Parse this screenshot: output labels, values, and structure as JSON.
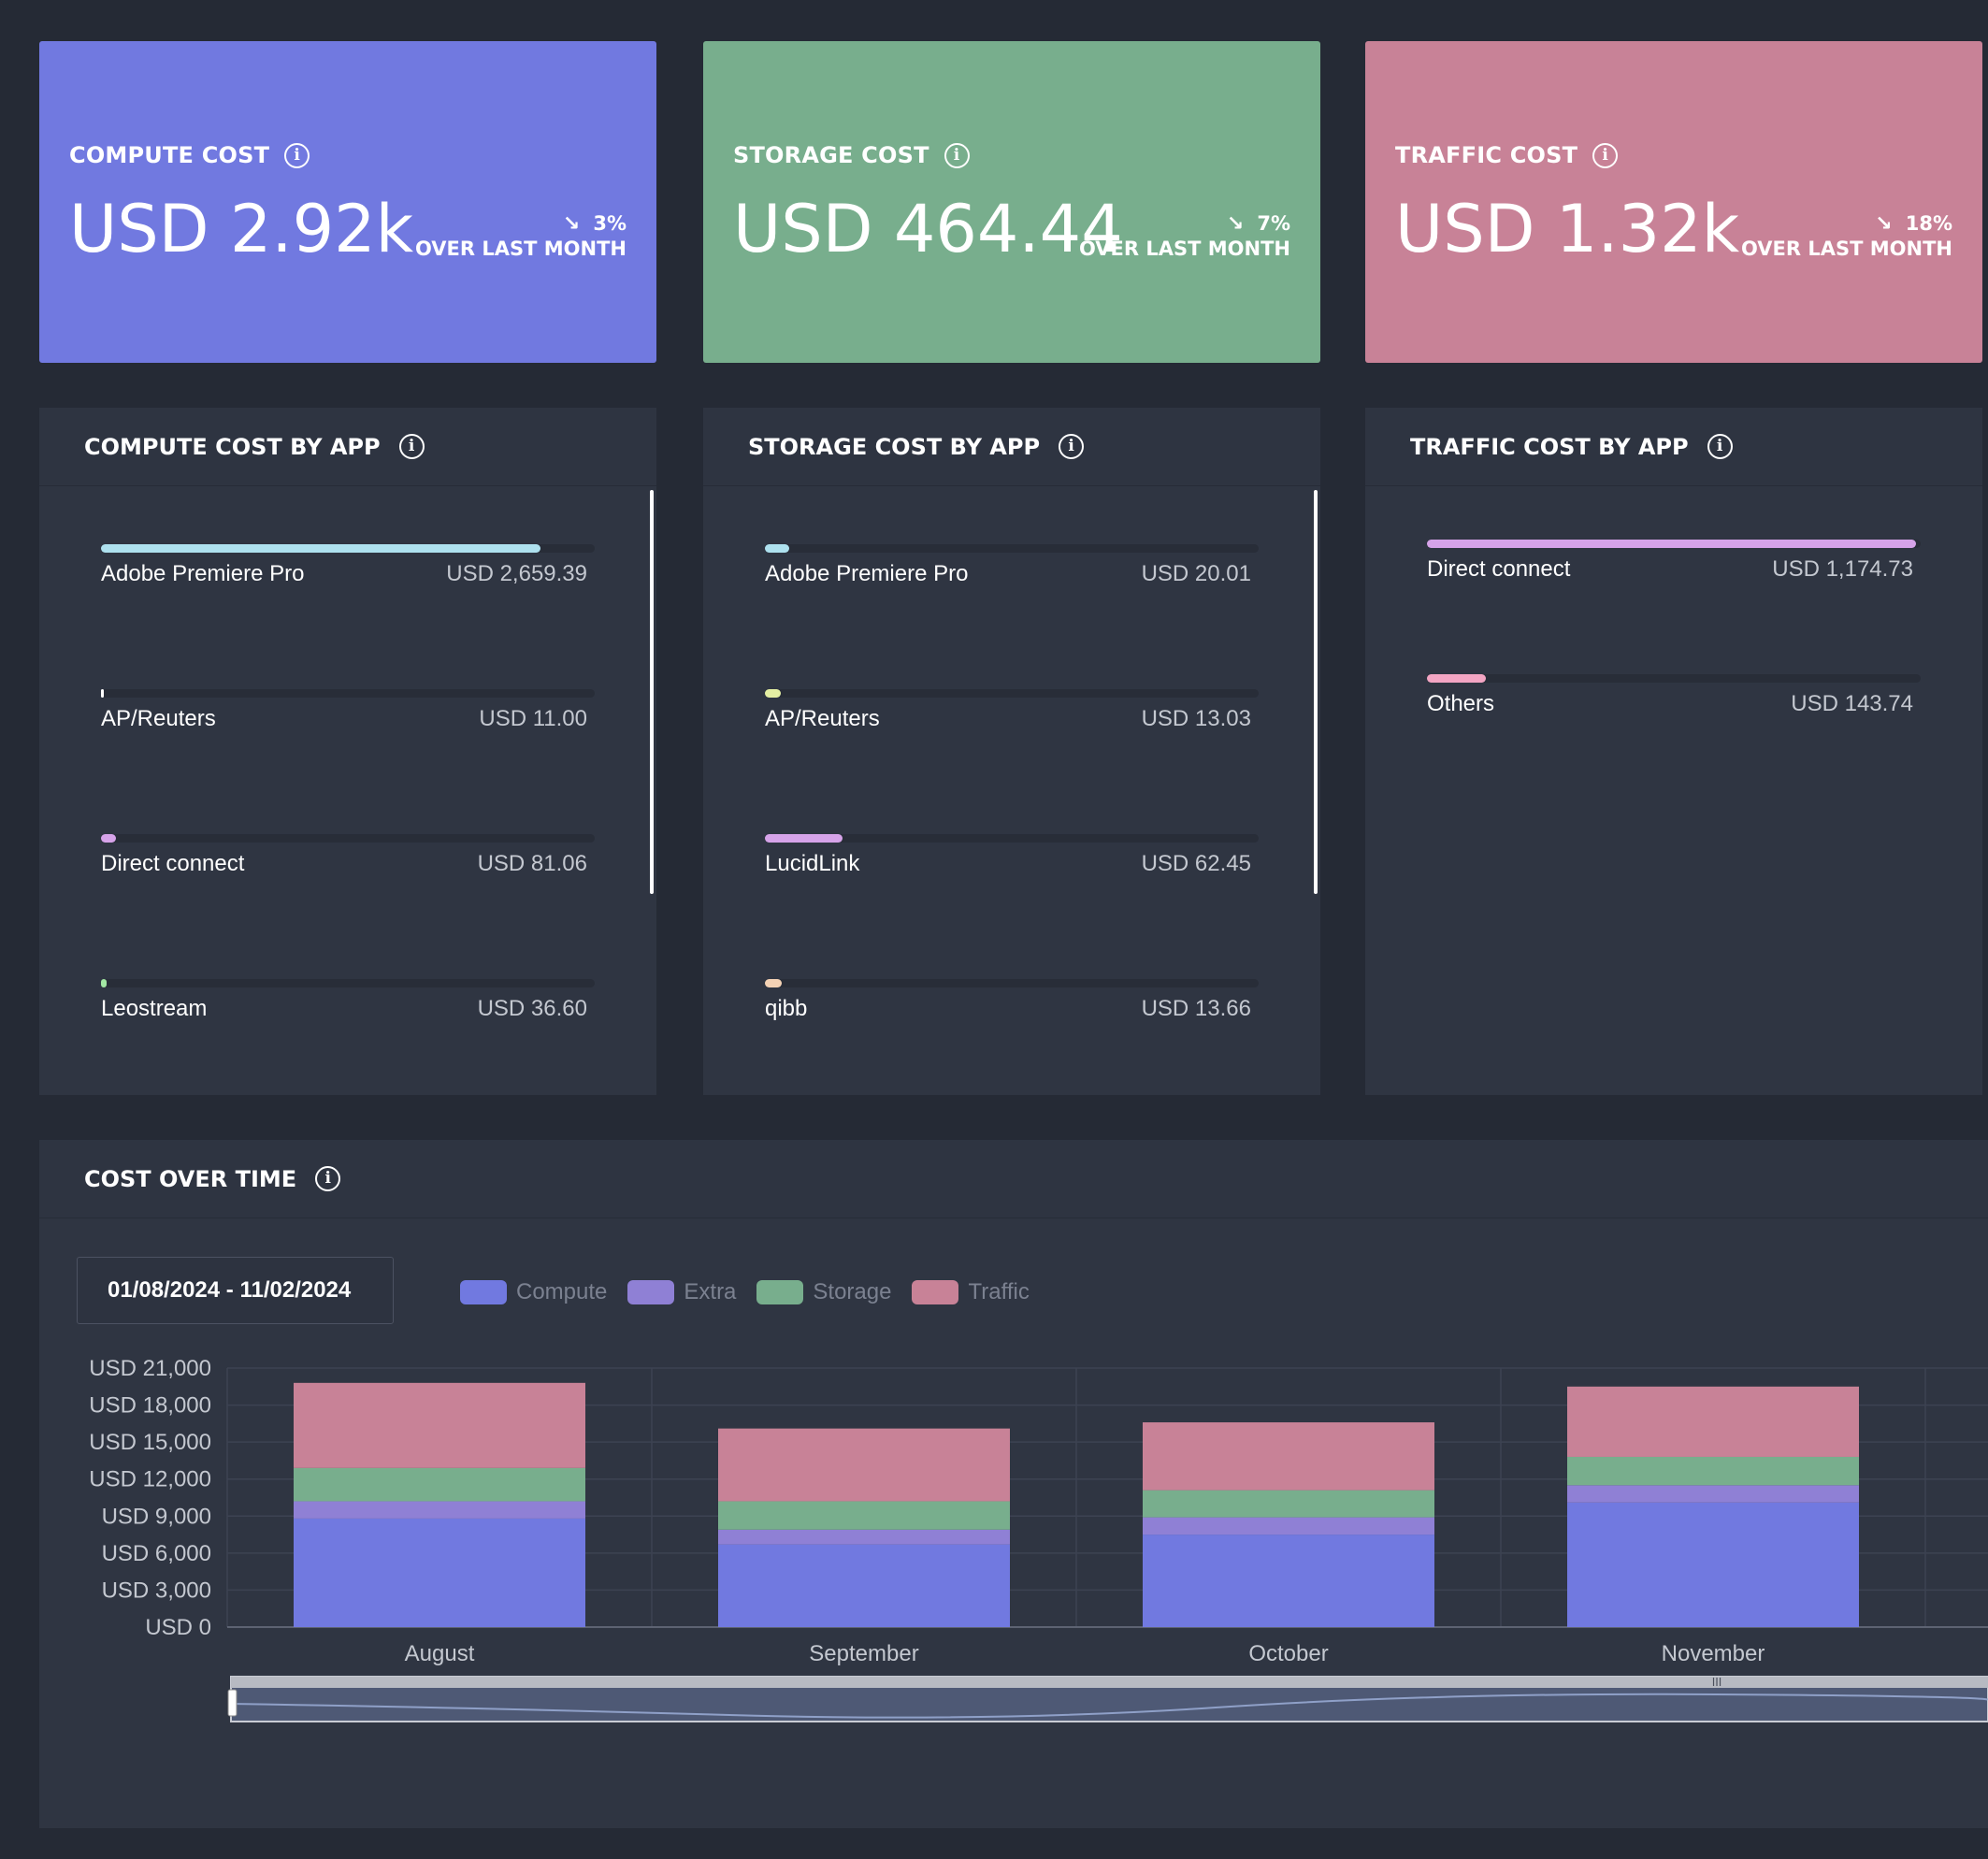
{
  "kpis": [
    {
      "title": "COMPUTE COST",
      "value": "USD 2.92k",
      "change_pct": "3%",
      "change_label": "OVER LAST MONTH",
      "arrow": "↘",
      "color": "#7179e0"
    },
    {
      "title": "STORAGE COST",
      "value": "USD 464.44",
      "change_pct": "7%",
      "change_label": "OVER LAST MONTH",
      "arrow": "↘",
      "color": "#78ae8d"
    },
    {
      "title": "TRAFFIC COST",
      "value": "USD 1.32k",
      "change_pct": "18%",
      "change_label": "OVER LAST MONTH",
      "arrow": "↘",
      "color": "#c88297"
    }
  ],
  "compute_by_app": {
    "title": "COMPUTE COST BY APP",
    "items": [
      {
        "name": "Adobe Premiere Pro",
        "value": "USD 2,659.39",
        "fraction": 0.89,
        "color": "#aee1ef"
      },
      {
        "name": "AP/Reuters",
        "value": "USD 11.00",
        "fraction": 0.004,
        "color": "#ffffff"
      },
      {
        "name": "Direct connect",
        "value": "USD 81.06",
        "fraction": 0.03,
        "color": "#d6a3e9"
      },
      {
        "name": "Leostream",
        "value": "USD 36.60",
        "fraction": 0.012,
        "color": "#a3e8a4"
      }
    ]
  },
  "storage_by_app": {
    "title": "STORAGE COST BY APP",
    "items": [
      {
        "name": "Adobe Premiere Pro",
        "value": "USD 20.01",
        "fraction": 0.05,
        "color": "#aee1ef"
      },
      {
        "name": "AP/Reuters",
        "value": "USD 13.03",
        "fraction": 0.033,
        "color": "#e4efa3"
      },
      {
        "name": "LucidLink",
        "value": "USD 62.45",
        "fraction": 0.158,
        "color": "#d6a3e9"
      },
      {
        "name": "qibb",
        "value": "USD 13.66",
        "fraction": 0.035,
        "color": "#f4d2b5"
      }
    ]
  },
  "traffic_by_app": {
    "title": "TRAFFIC COST BY APP",
    "items": [
      {
        "name": "Direct connect",
        "value": "USD 1,174.73",
        "fraction": 0.99,
        "color": "#d6a3e9"
      },
      {
        "name": "Others",
        "value": "USD 143.74",
        "fraction": 0.12,
        "color": "#f3a5c3"
      }
    ]
  },
  "cost_over_time": {
    "title": "COST OVER TIME",
    "date_range": "01/08/2024 - 11/02/2024",
    "legend": [
      {
        "label": "Compute",
        "color": "#7179e0"
      },
      {
        "label": "Extra",
        "color": "#8f80d5"
      },
      {
        "label": "Storage",
        "color": "#78ae8d"
      },
      {
        "label": "Traffic",
        "color": "#c88297"
      }
    ]
  },
  "chart_data": {
    "type": "bar",
    "stacked": true,
    "categories": [
      "August",
      "September",
      "October",
      "November"
    ],
    "series": [
      {
        "name": "Compute",
        "values": [
          8800,
          6700,
          7500,
          10100
        ],
        "color": "#7179e0"
      },
      {
        "name": "Extra",
        "values": [
          1400,
          1200,
          1400,
          1400
        ],
        "color": "#8f80d5"
      },
      {
        "name": "Storage",
        "values": [
          2700,
          2300,
          2200,
          2300
        ],
        "color": "#78ae8d"
      },
      {
        "name": "Traffic",
        "values": [
          6900,
          5900,
          5500,
          5700
        ],
        "color": "#c88297"
      }
    ],
    "ylim": [
      0,
      21000
    ],
    "yticks": [
      "USD 21,000",
      "USD 18,000",
      "USD 15,000",
      "USD 12,000",
      "USD 9,000",
      "USD 6,000",
      "USD 3,000",
      "USD 0"
    ],
    "grid": true,
    "legend_position": "top-left"
  }
}
